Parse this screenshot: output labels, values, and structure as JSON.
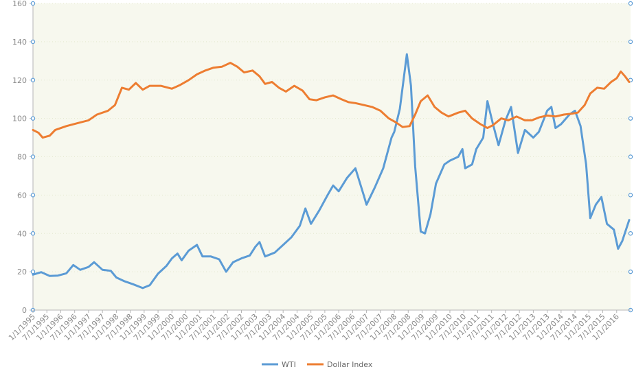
{
  "chart_data": {
    "type": "line",
    "title": "",
    "xlabel": "",
    "ylabel": "",
    "ylim": [
      0,
      160
    ],
    "yticks": [
      0,
      20,
      40,
      60,
      80,
      100,
      120,
      140,
      160
    ],
    "grid": false,
    "plot_background": "#f7f8ee",
    "legend_position": "bottom-center",
    "x_tick_labels": [
      "1/1/1995",
      "7/1/1995",
      "1/1/1996",
      "7/1/1996",
      "1/1/1997",
      "7/1/1997",
      "1/1/1998",
      "7/1/1998",
      "1/1/1999",
      "7/1/1999",
      "1/1/2000",
      "7/1/2000",
      "1/1/2001",
      "7/1/2001",
      "1/1/2002",
      "7/1/2002",
      "1/1/2003",
      "7/1/2003",
      "1/1/2004",
      "7/1/2004",
      "1/1/2005",
      "7/1/2005",
      "1/1/2006",
      "7/1/2006",
      "1/1/2007",
      "7/1/2007",
      "1/1/2008",
      "7/1/2008",
      "1/1/2009",
      "7/1/2009",
      "1/1/2010",
      "7/1/2010",
      "1/1/2011",
      "7/1/2011",
      "1/1/2012",
      "7/1/2012",
      "1/1/2013",
      "7/1/2013",
      "1/1/2014",
      "7/1/2014",
      "1/1/2015",
      "7/1/2015",
      "1/1/2016"
    ],
    "x_start": "1/1/1995",
    "x_end": "7/1/2016",
    "series": [
      {
        "name": "WTI",
        "color": "#5b9bd5",
        "points": [
          [
            1995.0,
            18.5
          ],
          [
            1995.3,
            19.8
          ],
          [
            1995.6,
            17.8
          ],
          [
            1995.9,
            18.0
          ],
          [
            1996.2,
            19.2
          ],
          [
            1996.45,
            23.5
          ],
          [
            1996.7,
            21.0
          ],
          [
            1997.0,
            22.5
          ],
          [
            1997.2,
            25.0
          ],
          [
            1997.5,
            21.0
          ],
          [
            1997.8,
            20.5
          ],
          [
            1998.0,
            17.0
          ],
          [
            1998.3,
            15.0
          ],
          [
            1998.6,
            13.5
          ],
          [
            1998.95,
            11.5
          ],
          [
            1999.2,
            13.0
          ],
          [
            1999.5,
            19.0
          ],
          [
            1999.8,
            23.0
          ],
          [
            2000.0,
            27.0
          ],
          [
            2000.2,
            29.5
          ],
          [
            2000.35,
            26.0
          ],
          [
            2000.6,
            31.0
          ],
          [
            2000.9,
            34.0
          ],
          [
            2001.1,
            28.0
          ],
          [
            2001.4,
            28.0
          ],
          [
            2001.7,
            26.5
          ],
          [
            2001.95,
            20.0
          ],
          [
            2002.2,
            25.0
          ],
          [
            2002.5,
            27.0
          ],
          [
            2002.8,
            28.5
          ],
          [
            2003.0,
            33.0
          ],
          [
            2003.15,
            35.5
          ],
          [
            2003.35,
            28.0
          ],
          [
            2003.7,
            30.0
          ],
          [
            2004.0,
            34.0
          ],
          [
            2004.3,
            38.0
          ],
          [
            2004.6,
            44.0
          ],
          [
            2004.8,
            53.0
          ],
          [
            2005.0,
            45.0
          ],
          [
            2005.3,
            52.0
          ],
          [
            2005.6,
            60.0
          ],
          [
            2005.8,
            65.0
          ],
          [
            2006.0,
            62.0
          ],
          [
            2006.3,
            69.0
          ],
          [
            2006.6,
            74.0
          ],
          [
            2006.9,
            60.0
          ],
          [
            2007.0,
            55.0
          ],
          [
            2007.3,
            64.0
          ],
          [
            2007.6,
            74.0
          ],
          [
            2007.9,
            90.0
          ],
          [
            2008.0,
            93.0
          ],
          [
            2008.2,
            105.0
          ],
          [
            2008.45,
            133.5
          ],
          [
            2008.6,
            117.0
          ],
          [
            2008.75,
            75.0
          ],
          [
            2008.95,
            41.0
          ],
          [
            2009.1,
            40.0
          ],
          [
            2009.3,
            50.0
          ],
          [
            2009.5,
            66.0
          ],
          [
            2009.8,
            76.0
          ],
          [
            2010.0,
            78.0
          ],
          [
            2010.3,
            80.0
          ],
          [
            2010.45,
            84.0
          ],
          [
            2010.55,
            74.0
          ],
          [
            2010.8,
            76.0
          ],
          [
            2010.95,
            84.0
          ],
          [
            2011.2,
            90.0
          ],
          [
            2011.35,
            109.0
          ],
          [
            2011.55,
            97.0
          ],
          [
            2011.75,
            86.0
          ],
          [
            2012.0,
            99.0
          ],
          [
            2012.2,
            106.0
          ],
          [
            2012.45,
            82.0
          ],
          [
            2012.7,
            94.0
          ],
          [
            2013.0,
            90.0
          ],
          [
            2013.2,
            93.0
          ],
          [
            2013.5,
            104.0
          ],
          [
            2013.65,
            106.0
          ],
          [
            2013.8,
            95.0
          ],
          [
            2014.0,
            97.0
          ],
          [
            2014.3,
            102.0
          ],
          [
            2014.5,
            104.0
          ],
          [
            2014.7,
            96.0
          ],
          [
            2014.9,
            76.0
          ],
          [
            2015.05,
            48.0
          ],
          [
            2015.25,
            55.0
          ],
          [
            2015.45,
            59.0
          ],
          [
            2015.65,
            45.0
          ],
          [
            2015.9,
            42.0
          ],
          [
            2016.05,
            32.0
          ],
          [
            2016.2,
            36.0
          ],
          [
            2016.45,
            47.0
          ]
        ]
      },
      {
        "name": "Dollar Index",
        "color": "#ed7d31",
        "points": [
          [
            1995.0,
            94.0
          ],
          [
            1995.2,
            92.5
          ],
          [
            1995.35,
            90.0
          ],
          [
            1995.6,
            91.0
          ],
          [
            1995.8,
            94.0
          ],
          [
            1996.2,
            96.0
          ],
          [
            1996.6,
            97.5
          ],
          [
            1997.0,
            99.0
          ],
          [
            1997.3,
            102.0
          ],
          [
            1997.7,
            104.0
          ],
          [
            1997.95,
            107.0
          ],
          [
            1998.2,
            116.0
          ],
          [
            1998.45,
            115.0
          ],
          [
            1998.7,
            118.5
          ],
          [
            1998.95,
            115.0
          ],
          [
            1999.2,
            117.0
          ],
          [
            1999.6,
            117.0
          ],
          [
            2000.0,
            115.5
          ],
          [
            2000.3,
            117.5
          ],
          [
            2000.6,
            120.0
          ],
          [
            2000.9,
            123.0
          ],
          [
            2001.2,
            125.0
          ],
          [
            2001.5,
            126.5
          ],
          [
            2001.8,
            127.0
          ],
          [
            2002.1,
            129.0
          ],
          [
            2002.35,
            127.0
          ],
          [
            2002.6,
            124.0
          ],
          [
            2002.9,
            125.0
          ],
          [
            2003.15,
            122.0
          ],
          [
            2003.35,
            118.0
          ],
          [
            2003.6,
            119.0
          ],
          [
            2003.85,
            116.0
          ],
          [
            2004.1,
            114.0
          ],
          [
            2004.4,
            117.0
          ],
          [
            2004.7,
            114.5
          ],
          [
            2004.95,
            110.0
          ],
          [
            2005.2,
            109.5
          ],
          [
            2005.5,
            111.0
          ],
          [
            2005.8,
            112.0
          ],
          [
            2006.1,
            110.0
          ],
          [
            2006.35,
            108.5
          ],
          [
            2006.6,
            108.0
          ],
          [
            2006.9,
            107.0
          ],
          [
            2007.2,
            106.0
          ],
          [
            2007.5,
            104.0
          ],
          [
            2007.8,
            100.0
          ],
          [
            2008.05,
            98.0
          ],
          [
            2008.3,
            95.5
          ],
          [
            2008.55,
            96.0
          ],
          [
            2008.75,
            102.0
          ],
          [
            2008.95,
            109.0
          ],
          [
            2009.2,
            112.0
          ],
          [
            2009.45,
            106.0
          ],
          [
            2009.7,
            103.0
          ],
          [
            2009.95,
            101.0
          ],
          [
            2010.3,
            103.0
          ],
          [
            2010.55,
            104.0
          ],
          [
            2010.8,
            100.0
          ],
          [
            2011.1,
            97.0
          ],
          [
            2011.35,
            95.0
          ],
          [
            2011.55,
            96.5
          ],
          [
            2011.85,
            100.0
          ],
          [
            2012.1,
            99.0
          ],
          [
            2012.4,
            101.0
          ],
          [
            2012.7,
            99.0
          ],
          [
            2012.95,
            99.0
          ],
          [
            2013.2,
            100.5
          ],
          [
            2013.5,
            101.5
          ],
          [
            2013.8,
            101.0
          ],
          [
            2014.1,
            102.0
          ],
          [
            2014.4,
            102.5
          ],
          [
            2014.6,
            103.0
          ],
          [
            2014.85,
            107.0
          ],
          [
            2015.05,
            113.0
          ],
          [
            2015.3,
            116.0
          ],
          [
            2015.55,
            115.5
          ],
          [
            2015.8,
            119.0
          ],
          [
            2016.0,
            121.0
          ],
          [
            2016.15,
            124.5
          ],
          [
            2016.3,
            122.0
          ],
          [
            2016.45,
            119.0
          ]
        ]
      }
    ]
  }
}
